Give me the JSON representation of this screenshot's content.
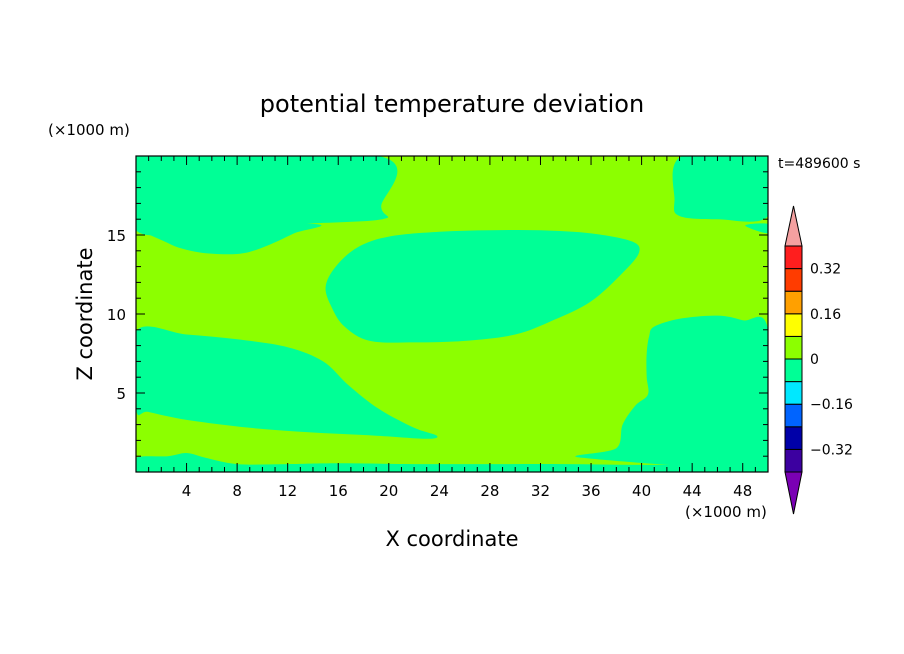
{
  "chart_data": {
    "type": "heatmap",
    "subtype": "filled-contour",
    "title": "potential temperature deviation",
    "xlabel": "X coordinate",
    "ylabel": "Z coordinate",
    "x_unit_label": "(×1000 m)",
    "y_unit_label": "(×1000 m)",
    "time_label": "t=489600 s",
    "xlim": [
      0,
      50
    ],
    "ylim": [
      0,
      20
    ],
    "x_ticks": [
      4,
      8,
      12,
      16,
      20,
      24,
      28,
      32,
      36,
      40,
      44,
      48
    ],
    "y_ticks": [
      5,
      10,
      15
    ],
    "colorbar": {
      "levels": [
        -0.4,
        -0.32,
        -0.24,
        -0.16,
        -0.08,
        0,
        0.08,
        0.16,
        0.24,
        0.32,
        0.4
      ],
      "tick_labels": [
        {
          "value": 0.32,
          "label": "0.32"
        },
        {
          "value": 0.16,
          "label": "0.16"
        },
        {
          "value": 0,
          "label": "0"
        },
        {
          "value": -0.16,
          "label": "−0.16"
        },
        {
          "value": -0.32,
          "label": "−0.32"
        }
      ],
      "colors": [
        "#7a00b4",
        "#3c00a0",
        "#0000a8",
        "#0064ff",
        "#00e8ff",
        "#00ff96",
        "#8cff00",
        "#ffff00",
        "#ffa000",
        "#ff3c00",
        "#ff1e1e",
        "#f4a0a0"
      ],
      "extend": "both"
    },
    "background_band": {
      "range": [
        0,
        0.08
      ],
      "color": "#8cff00"
    },
    "regions": [
      {
        "name": "upper-left-cool-band",
        "range": [
          -0.08,
          0
        ],
        "color": "#00ff96",
        "points": [
          [
            0,
            20
          ],
          [
            19.2,
            20
          ],
          [
            19.4,
            16.8
          ],
          [
            19.5,
            16.0
          ],
          [
            13,
            15.7
          ],
          [
            6,
            15.4
          ],
          [
            0,
            15.3
          ]
        ]
      },
      {
        "name": "upper-left-cool-lobe",
        "range": [
          -0.08,
          0
        ],
        "color": "#00ff96",
        "points": [
          [
            1,
            15.7
          ],
          [
            2.5,
            14.5
          ],
          [
            5,
            13.9
          ],
          [
            8,
            13.8
          ],
          [
            10,
            14.2
          ],
          [
            12.5,
            15.1
          ],
          [
            14,
            15.7
          ]
        ]
      },
      {
        "name": "upper-right-cool-band",
        "range": [
          -0.08,
          0
        ],
        "color": "#00ff96",
        "points": [
          [
            43.2,
            20
          ],
          [
            50,
            20
          ],
          [
            50,
            16.2
          ],
          [
            46,
            16.0
          ],
          [
            43,
            16.2
          ],
          [
            42.6,
            17.2
          ]
        ]
      },
      {
        "name": "right-edge-sliver",
        "range": [
          -0.08,
          0
        ],
        "color": "#00ff96",
        "points": [
          [
            48.2,
            15.6
          ],
          [
            50,
            15.7
          ],
          [
            50,
            15.1
          ]
        ]
      },
      {
        "name": "center-cool-blob",
        "range": [
          -0.08,
          0
        ],
        "color": "#00ff96",
        "points": [
          [
            15.0,
            11.7
          ],
          [
            15.5,
            10.4
          ],
          [
            16.5,
            9.2
          ],
          [
            18.5,
            8.3
          ],
          [
            22,
            8.2
          ],
          [
            26,
            8.3
          ],
          [
            30,
            8.7
          ],
          [
            33,
            9.6
          ],
          [
            36,
            10.8
          ],
          [
            38.5,
            12.6
          ],
          [
            39.8,
            13.9
          ],
          [
            39.2,
            14.6
          ],
          [
            36,
            15.1
          ],
          [
            32,
            15.3
          ],
          [
            28,
            15.3
          ],
          [
            24,
            15.2
          ],
          [
            20,
            14.9
          ],
          [
            17.5,
            14.2
          ],
          [
            15.8,
            13.0
          ]
        ]
      },
      {
        "name": "left-cool-wedge",
        "range": [
          -0.08,
          0
        ],
        "color": "#00ff96",
        "points": [
          [
            0,
            8.9
          ],
          [
            4,
            8.7
          ],
          [
            8,
            8.4
          ],
          [
            12,
            7.9
          ],
          [
            14.8,
            7.0
          ],
          [
            16.8,
            5.5
          ],
          [
            19.2,
            4.0
          ],
          [
            22,
            2.8
          ],
          [
            23.8,
            2.3
          ],
          [
            23,
            2.1
          ],
          [
            19,
            2.3
          ],
          [
            14,
            2.5
          ],
          [
            9,
            2.8
          ],
          [
            4,
            3.3
          ],
          [
            1,
            3.8
          ],
          [
            0,
            4.0
          ]
        ]
      },
      {
        "name": "right-cool-region",
        "range": [
          -0.08,
          0
        ],
        "color": "#00ff96",
        "points": [
          [
            35.3,
            0.9
          ],
          [
            38,
            1.5
          ],
          [
            38.5,
            3.0
          ],
          [
            39.5,
            4.2
          ],
          [
            40.5,
            4.9
          ],
          [
            40.4,
            6.0
          ],
          [
            40.4,
            7.5
          ],
          [
            40.6,
            8.6
          ],
          [
            41,
            9.2
          ],
          [
            43,
            9.7
          ],
          [
            46,
            9.9
          ],
          [
            48,
            9.6
          ],
          [
            50,
            9.0
          ],
          [
            50,
            0.5
          ],
          [
            49,
            0.7
          ],
          [
            47,
            1.0
          ],
          [
            45.8,
            1.6
          ],
          [
            45.2,
            2.5
          ],
          [
            45,
            3.4
          ],
          [
            45.8,
            3.9
          ],
          [
            48,
            4.2
          ],
          [
            50,
            4.1
          ],
          [
            50,
            0.5
          ]
        ]
      },
      {
        "name": "bottom-cool-strip",
        "range": [
          -0.08,
          0
        ],
        "color": "#00ff96",
        "points": [
          [
            0,
            0
          ],
          [
            50,
            0
          ],
          [
            50,
            0.5
          ],
          [
            46,
            0.5
          ],
          [
            40,
            0.45
          ],
          [
            34,
            0.5
          ],
          [
            28,
            0.5
          ],
          [
            22,
            0.5
          ],
          [
            16,
            0.55
          ],
          [
            12,
            0.5
          ],
          [
            8,
            0.5
          ],
          [
            5.5,
            0.9
          ],
          [
            4,
            1.2
          ],
          [
            2.5,
            1.0
          ],
          [
            0,
            0.9
          ]
        ]
      }
    ],
    "grid": false,
    "legend": "colorbar-right"
  }
}
